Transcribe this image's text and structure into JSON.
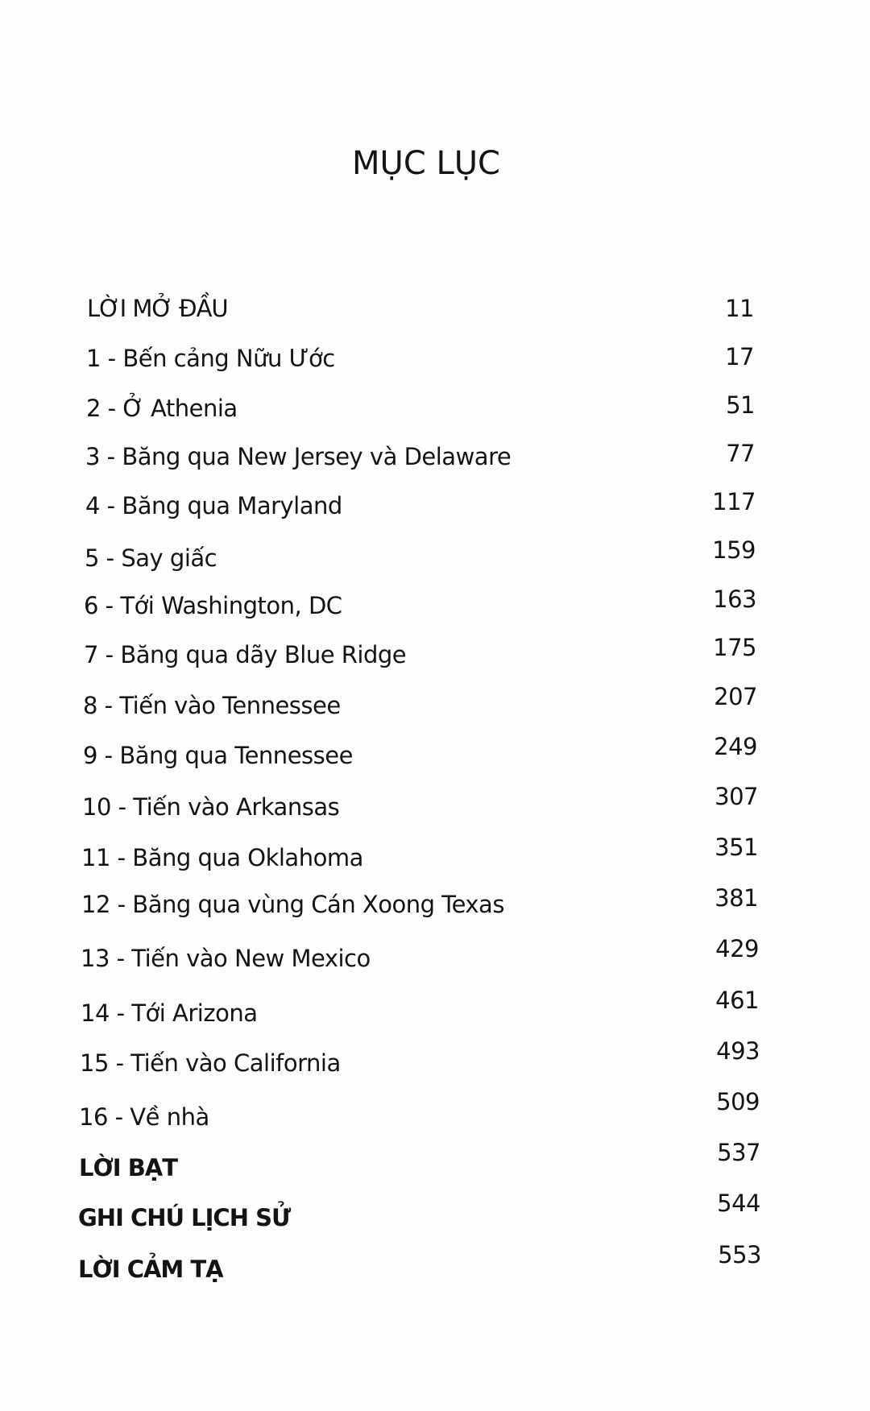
{
  "title": "MỤC LỤC",
  "entries": [
    {
      "label": "LỜI MỞ ĐẦU",
      "page": "11"
    },
    {
      "label": "1 - Bến cảng Nữu Ước",
      "page": "17"
    },
    {
      "label": "2 - Ở Athenia",
      "page": "51"
    },
    {
      "label": "3 - Băng qua New Jersey và Delaware",
      "page": "77"
    },
    {
      "label": "4 - Băng qua Maryland",
      "page": "117"
    },
    {
      "label": "5 - Say giấc",
      "page": "159"
    },
    {
      "label": "6 - Tới Washington, DC",
      "page": "163"
    },
    {
      "label": "7 - Băng qua dãy Blue Ridge",
      "page": "175"
    },
    {
      "label": "8 - Tiến vào Tennessee",
      "page": "207"
    },
    {
      "label": "9 - Băng qua Tennessee",
      "page": "249"
    },
    {
      "label": "10 - Tiến vào Arkansas",
      "page": "307"
    },
    {
      "label": "11 - Băng qua Oklahoma",
      "page": "351"
    },
    {
      "label": "12 - Băng qua vùng Cán Xoong Texas",
      "page": "381"
    },
    {
      "label": "13 - Tiến vào New Mexico",
      "page": "429"
    },
    {
      "label": "14 - Tới Arizona",
      "page": "461"
    },
    {
      "label": "15 - Tiến vào California",
      "page": "493"
    },
    {
      "label": "16 - Về nhà",
      "page": "509"
    },
    {
      "label": "LỜI BẠT",
      "page": "537"
    },
    {
      "label": "GHI CHÚ LỊCH SỬ",
      "page": "544"
    },
    {
      "label": "LỜI CẢM TẠ",
      "page": "553"
    }
  ]
}
